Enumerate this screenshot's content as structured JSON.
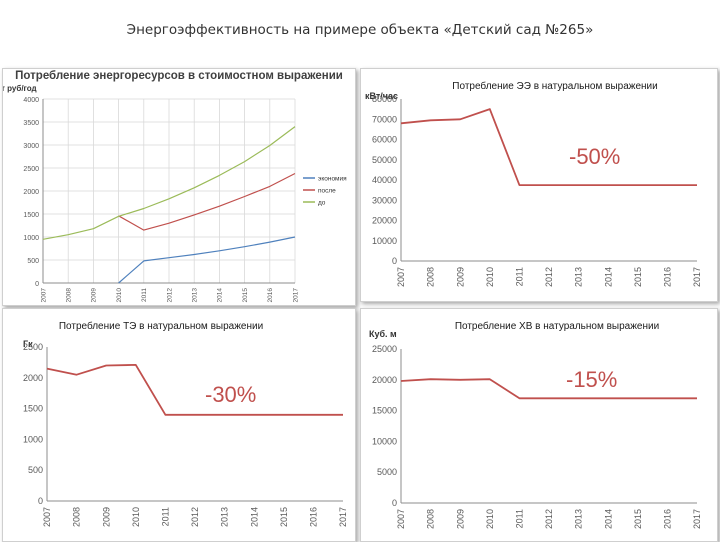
{
  "slide": {
    "title": "Энергоэффективность на примере объекта «Детский сад №265»"
  },
  "colors": {
    "red": "#c0504d",
    "blue": "#4f81bd",
    "green": "#9bbb59",
    "grid": "#d9d9d9",
    "axis": "#8c8c8c",
    "text": "#595959"
  },
  "chart_data": [
    {
      "type": "line",
      "title": "Потребление энергоресурсов в стоимостном выражении",
      "ylabel": "т руб/год",
      "categories": [
        "2007",
        "2008",
        "2009",
        "2010",
        "2011",
        "2012",
        "2013",
        "2014",
        "2015",
        "2016",
        "2017"
      ],
      "ylim": [
        0,
        4000
      ],
      "yticks": [
        0,
        500,
        1000,
        1500,
        2000,
        2500,
        3000,
        3500,
        4000
      ],
      "grid": true,
      "legend": "right",
      "series": [
        {
          "name": "экономия",
          "color": "#4f81bd",
          "values": [
            null,
            null,
            null,
            0,
            480,
            550,
            620,
            700,
            790,
            890,
            1000
          ]
        },
        {
          "name": "после",
          "color": "#c0504d",
          "values": [
            null,
            null,
            null,
            1460,
            1150,
            1300,
            1480,
            1670,
            1880,
            2100,
            2380
          ]
        },
        {
          "name": "до",
          "color": "#9bbb59",
          "values": [
            950,
            1050,
            1180,
            1450,
            1620,
            1830,
            2070,
            2340,
            2640,
            2990,
            3400
          ]
        }
      ]
    },
    {
      "type": "line",
      "title": "Потребление ЭЭ в натуральном выражении",
      "ylabel": "кВт/час",
      "categories": [
        "2007",
        "2008",
        "2009",
        "2010",
        "2011",
        "2012",
        "2013",
        "2014",
        "2015",
        "2016",
        "2017"
      ],
      "ylim": [
        0,
        80000
      ],
      "yticks": [
        0,
        10000,
        20000,
        30000,
        40000,
        50000,
        60000,
        70000,
        80000
      ],
      "grid": false,
      "annotation": "-50%",
      "series": [
        {
          "color": "#c0504d",
          "values": [
            68000,
            69500,
            70000,
            75000,
            37500,
            37500,
            37500,
            37500,
            37500,
            37500,
            37500
          ]
        }
      ]
    },
    {
      "type": "line",
      "title": "Потребление ТЭ в натуральном выражении",
      "ylabel": "Гк",
      "categories": [
        "2007",
        "2008",
        "2009",
        "2010",
        "2011",
        "2012",
        "2013",
        "2014",
        "2015",
        "2016",
        "2017"
      ],
      "ylim": [
        0,
        2500
      ],
      "yticks": [
        0,
        500,
        1000,
        1500,
        2000,
        2500
      ],
      "grid": false,
      "annotation": "-30%",
      "series": [
        {
          "color": "#c0504d",
          "values": [
            2150,
            2050,
            2200,
            2210,
            1400,
            1400,
            1400,
            1400,
            1400,
            1400,
            1400
          ]
        }
      ]
    },
    {
      "type": "line",
      "title": "Потребление ХВ в натуральном выражении",
      "ylabel": "Куб. м",
      "categories": [
        "2007",
        "2008",
        "2009",
        "2010",
        "2011",
        "2012",
        "2013",
        "2014",
        "2015",
        "2016",
        "2017"
      ],
      "ylim": [
        0,
        25000
      ],
      "yticks": [
        0,
        5000,
        10000,
        15000,
        20000,
        25000
      ],
      "grid": false,
      "annotation": "-15%",
      "series": [
        {
          "color": "#c0504d",
          "values": [
            19800,
            20100,
            20000,
            20100,
            17000,
            17000,
            17000,
            17000,
            17000,
            17000,
            17000
          ]
        }
      ]
    }
  ]
}
